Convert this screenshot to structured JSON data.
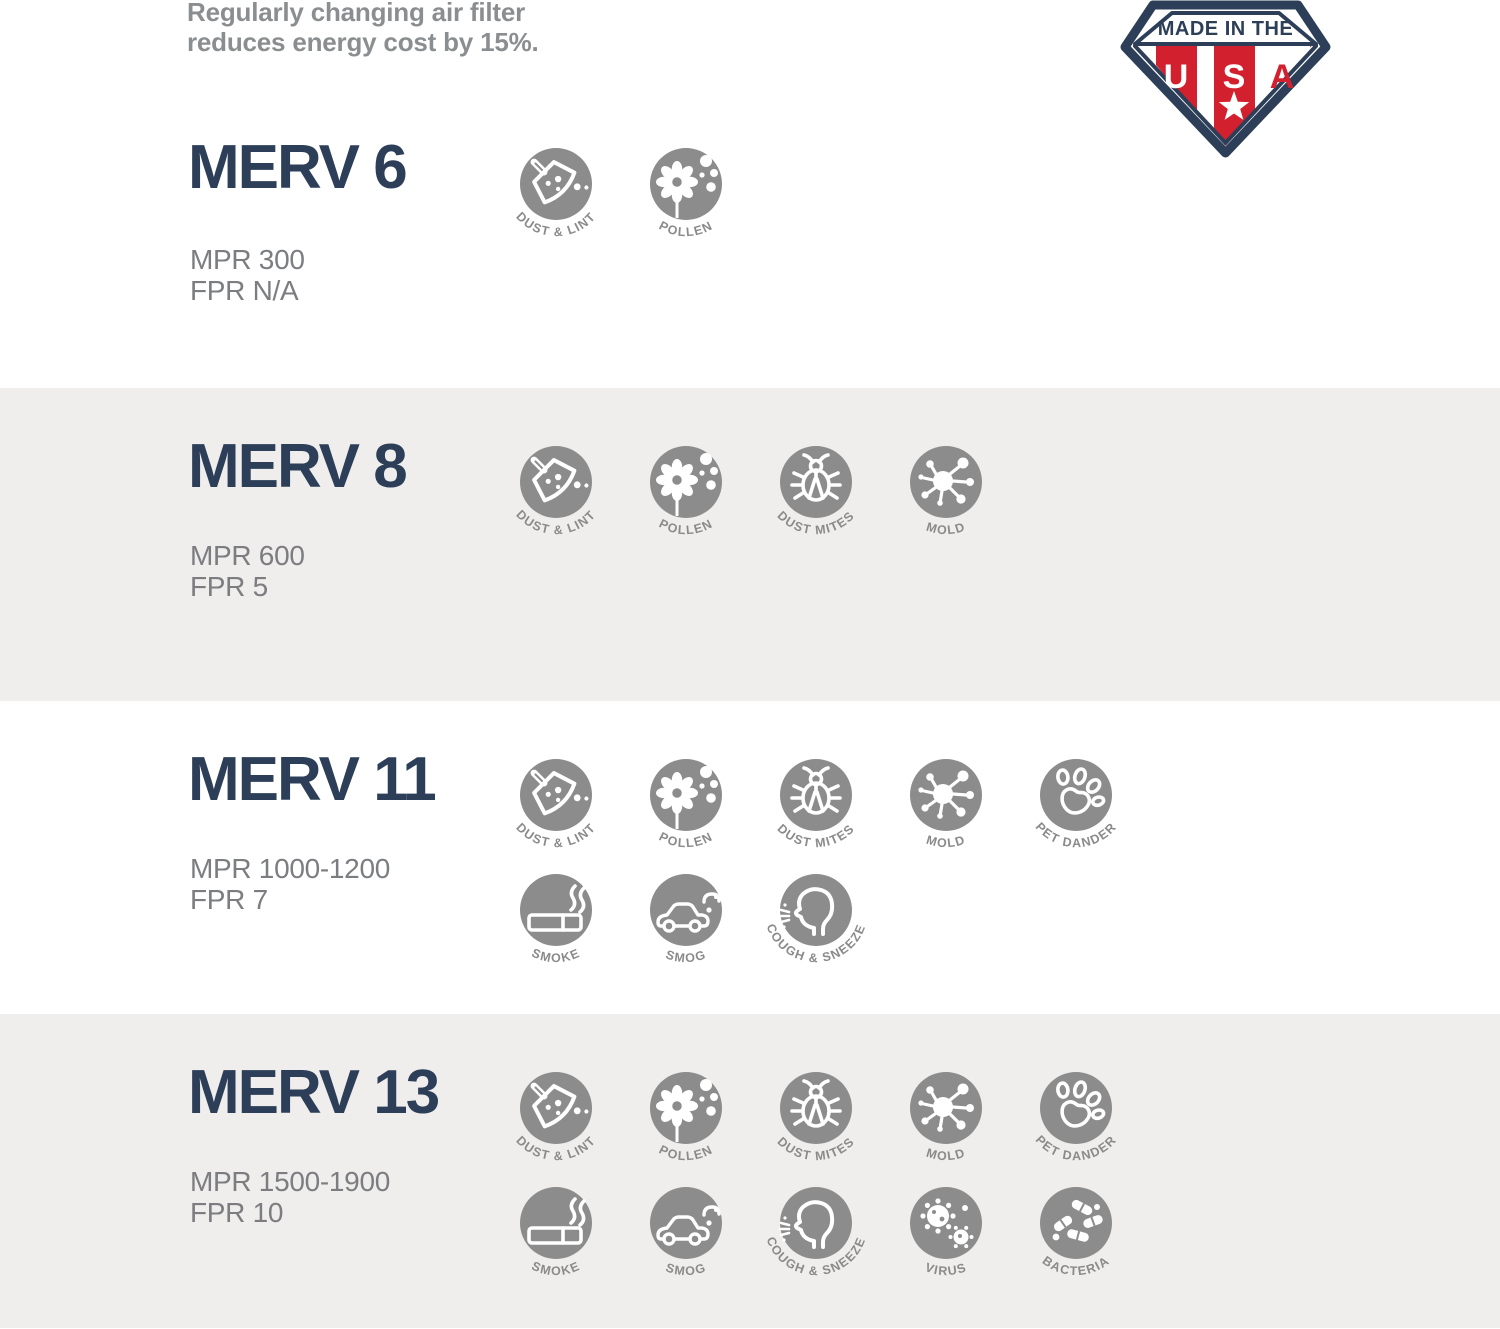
{
  "header": {
    "note_line1": "Regularly changing air filter",
    "note_line2": "reduces energy cost by 15%."
  },
  "badge": {
    "banner": "MADE IN THE",
    "letters": [
      "U",
      "S",
      "A"
    ]
  },
  "colors": {
    "heading_navy": "#2d3f58",
    "badge_red": "#d3202f",
    "alt_band_bg": "#efeeec",
    "icon_circle_gray": "#8c8c8c",
    "body_text_gray": "#7b7d80",
    "note_gray": "#8b8e90"
  },
  "icon_labels": {
    "dust-lint": "DUST & LINT",
    "pollen": "POLLEN",
    "dust-mites": "DUST  MITES",
    "mold": "MOLD",
    "pet-dander": "PET  DANDER",
    "smoke": "SMOKE",
    "smog": "SMOG",
    "cough-sneeze": "COUGH & SNEEZE",
    "virus": "VIRUS",
    "bacteria": "BACTERIA"
  },
  "sections": [
    {
      "title": "MERV 6",
      "mpr": "MPR 300",
      "fpr": "FPR N/A",
      "icon_rows": [
        [
          "dust-lint",
          "pollen"
        ]
      ]
    },
    {
      "title": "MERV 8",
      "mpr": "MPR 600",
      "fpr": "FPR 5",
      "icon_rows": [
        [
          "dust-lint",
          "pollen",
          "dust-mites",
          "mold"
        ]
      ]
    },
    {
      "title": "MERV 11",
      "mpr": "MPR 1000-1200",
      "fpr": "FPR 7",
      "icon_rows": [
        [
          "dust-lint",
          "pollen",
          "dust-mites",
          "mold",
          "pet-dander"
        ],
        [
          "smoke",
          "smog",
          "cough-sneeze"
        ]
      ]
    },
    {
      "title": "MERV 13",
      "mpr": "MPR 1500-1900",
      "fpr": "FPR 10",
      "icon_rows": [
        [
          "dust-lint",
          "pollen",
          "dust-mites",
          "mold",
          "pet-dander"
        ],
        [
          "smoke",
          "smog",
          "cough-sneeze",
          "virus",
          "bacteria"
        ]
      ]
    }
  ]
}
